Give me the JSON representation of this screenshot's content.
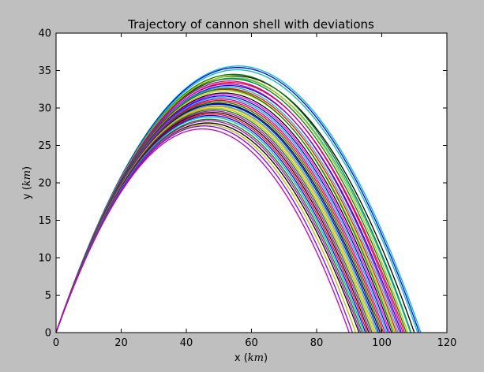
{
  "chart_data": {
    "type": "line",
    "title": "Trajectory of cannon shell with deviations",
    "xlabel": "x (km)",
    "xlabel_text": "x (",
    "xlabel_math": "km",
    "xlabel_close": ")",
    "ylabel": "y (km)",
    "ylabel_text": "y (",
    "ylabel_math": "km",
    "ylabel_close": ")",
    "xlim": [
      0,
      120
    ],
    "ylim": [
      0,
      40
    ],
    "xticks": [
      0,
      20,
      40,
      60,
      80,
      100,
      120
    ],
    "yticks": [
      0,
      5,
      10,
      15,
      20,
      25,
      30,
      35,
      40
    ],
    "grid": false,
    "legend": "none",
    "trajectory_shape": "parabola through the origin; each series given by its range (x where y returns to 0) and apex height",
    "series": [
      {
        "range": 112.0,
        "apex": 35.6,
        "color": "#00bfbf"
      },
      {
        "range": 111.5,
        "apex": 35.4,
        "color": "#0000ff"
      },
      {
        "range": 111.0,
        "apex": 35.1,
        "color": "#00bfbf"
      },
      {
        "range": 110.0,
        "apex": 34.3,
        "color": "#000000"
      },
      {
        "range": 109.0,
        "apex": 34.5,
        "color": "#008000"
      },
      {
        "range": 108.8,
        "apex": 34.0,
        "color": "#00bfbf"
      },
      {
        "range": 108.0,
        "apex": 34.2,
        "color": "#bfbf00"
      },
      {
        "range": 107.5,
        "apex": 33.9,
        "color": "#008000"
      },
      {
        "range": 107.0,
        "apex": 33.4,
        "color": "#ff0000"
      },
      {
        "range": 106.5,
        "apex": 33.6,
        "color": "#bf00bf"
      },
      {
        "range": 106.0,
        "apex": 33.0,
        "color": "#0000ff"
      },
      {
        "range": 105.5,
        "apex": 33.2,
        "color": "#bf00bf"
      },
      {
        "range": 105.0,
        "apex": 32.8,
        "color": "#00bfbf"
      },
      {
        "range": 104.5,
        "apex": 32.6,
        "color": "#ff0000"
      },
      {
        "range": 104.0,
        "apex": 32.3,
        "color": "#bfbf00"
      },
      {
        "range": 103.5,
        "apex": 32.5,
        "color": "#008000"
      },
      {
        "range": 103.0,
        "apex": 32.0,
        "color": "#000000"
      },
      {
        "range": 102.5,
        "apex": 31.8,
        "color": "#ff00ff"
      },
      {
        "range": 102.0,
        "apex": 31.6,
        "color": "#0000ff"
      },
      {
        "range": 101.5,
        "apex": 31.4,
        "color": "#00bfbf"
      },
      {
        "range": 101.0,
        "apex": 31.2,
        "color": "#bf00bf"
      },
      {
        "range": 100.5,
        "apex": 31.0,
        "color": "#ff0000"
      },
      {
        "range": 100.0,
        "apex": 30.8,
        "color": "#008000"
      },
      {
        "range": 99.5,
        "apex": 30.6,
        "color": "#000000"
      },
      {
        "range": 99.0,
        "apex": 30.5,
        "color": "#0000ff"
      },
      {
        "range": 98.5,
        "apex": 30.3,
        "color": "#00bfbf"
      },
      {
        "range": 98.0,
        "apex": 30.2,
        "color": "#ffa500"
      },
      {
        "range": 97.5,
        "apex": 30.0,
        "color": "#bfbf00"
      },
      {
        "range": 97.0,
        "apex": 29.8,
        "color": "#008000"
      },
      {
        "range": 96.5,
        "apex": 29.6,
        "color": "#bf00bf"
      },
      {
        "range": 96.0,
        "apex": 29.4,
        "color": "#000000"
      },
      {
        "range": 95.5,
        "apex": 29.2,
        "color": "#ff0000"
      },
      {
        "range": 95.0,
        "apex": 29.0,
        "color": "#0000ff"
      },
      {
        "range": 94.5,
        "apex": 28.8,
        "color": "#00bfbf"
      },
      {
        "range": 94.0,
        "apex": 28.5,
        "color": "#008000"
      },
      {
        "range": 93.5,
        "apex": 28.3,
        "color": "#bf00bf"
      },
      {
        "range": 93.0,
        "apex": 28.0,
        "color": "#000000"
      },
      {
        "range": 92.0,
        "apex": 27.8,
        "color": "#bfbf00"
      },
      {
        "range": 91.0,
        "apex": 27.6,
        "color": "#8000ff"
      },
      {
        "range": 90.0,
        "apex": 27.2,
        "color": "#bf00bf"
      }
    ]
  }
}
